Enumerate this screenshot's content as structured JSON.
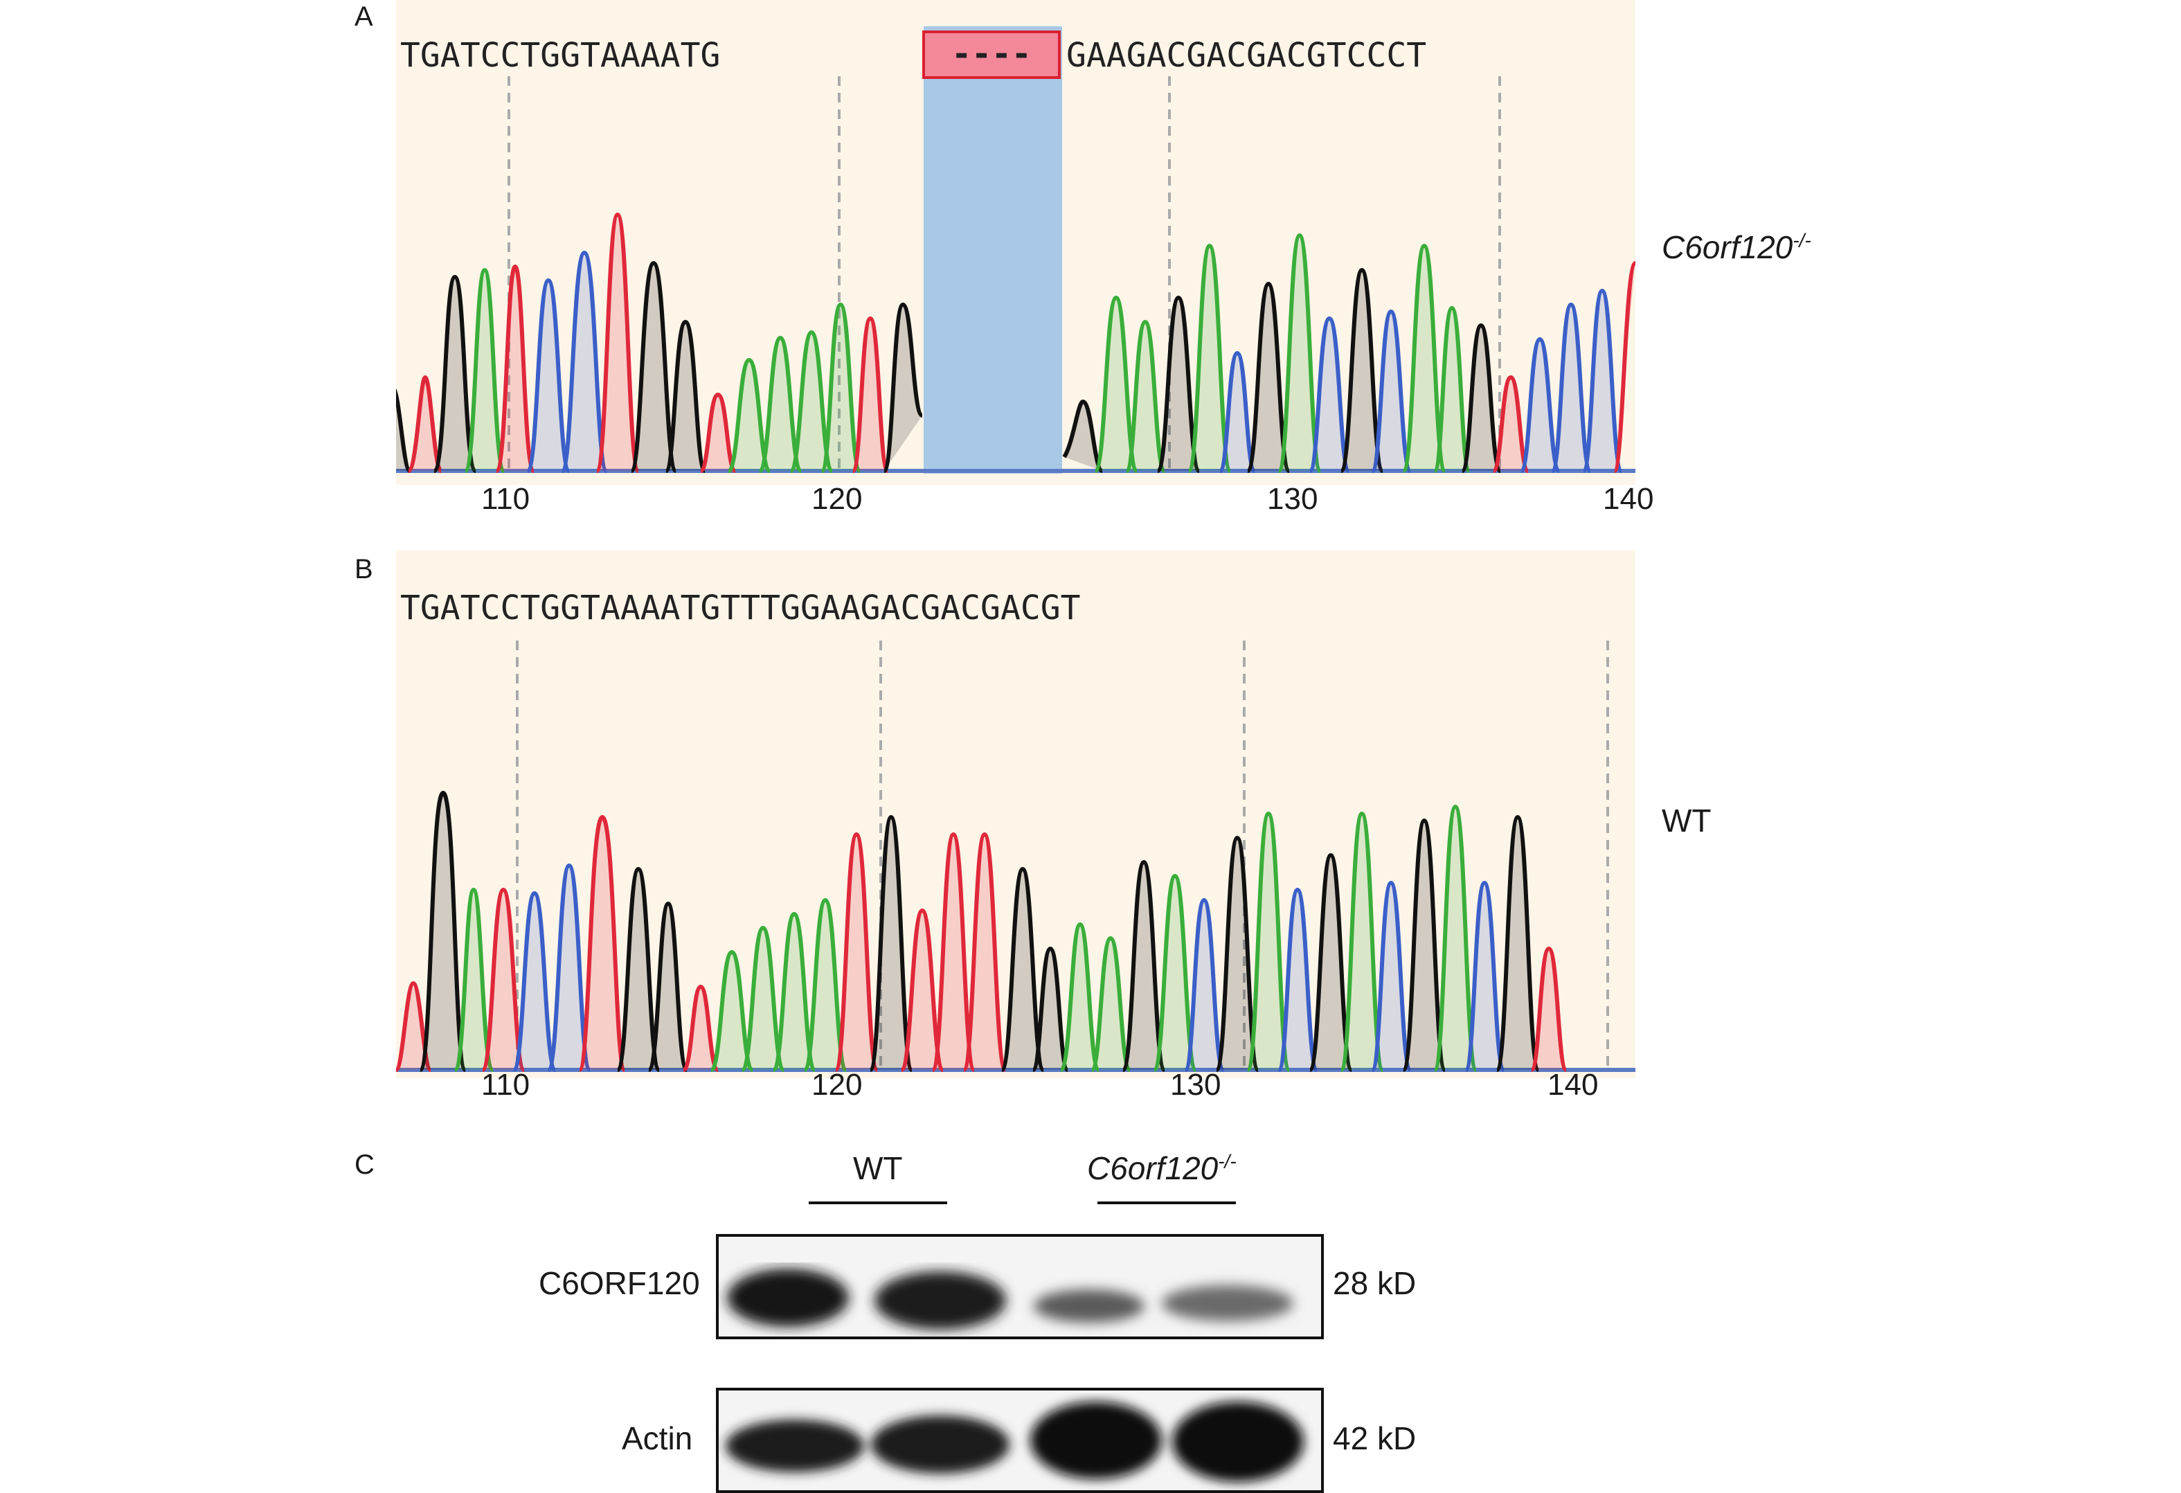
{
  "panels": {
    "a": {
      "letter": "A",
      "sequence": "TGATCCTGGTAAAATG",
      "gap": "----",
      "sequence_after": "GAAGACGACGACGTCCCT",
      "sample_label": "C6orf120",
      "sample_sup": "-/-",
      "ticks": [
        "110",
        "120",
        "130",
        "140"
      ]
    },
    "b": {
      "letter": "B",
      "sequence": "TGATCCTGGTAAAATGTTTGGAAGACGACGACGT",
      "sample_label": "WT",
      "ticks": [
        "110",
        "120",
        "130",
        "140"
      ]
    },
    "c": {
      "letter": "C",
      "group_wt": "WT",
      "group_ko": "C6orf120",
      "group_ko_sup": "-/-",
      "row1_label": "C6ORF120",
      "row1_size": "28 kD",
      "row2_label": "Actin",
      "row2_size": "42 kD"
    }
  },
  "colors": {
    "A": "#3aae3a",
    "C": "#3a5fc8",
    "G": "#111111",
    "T": "#e0283a",
    "deletion": "#a8c8e6",
    "gapbox": "#f2889a"
  }
}
